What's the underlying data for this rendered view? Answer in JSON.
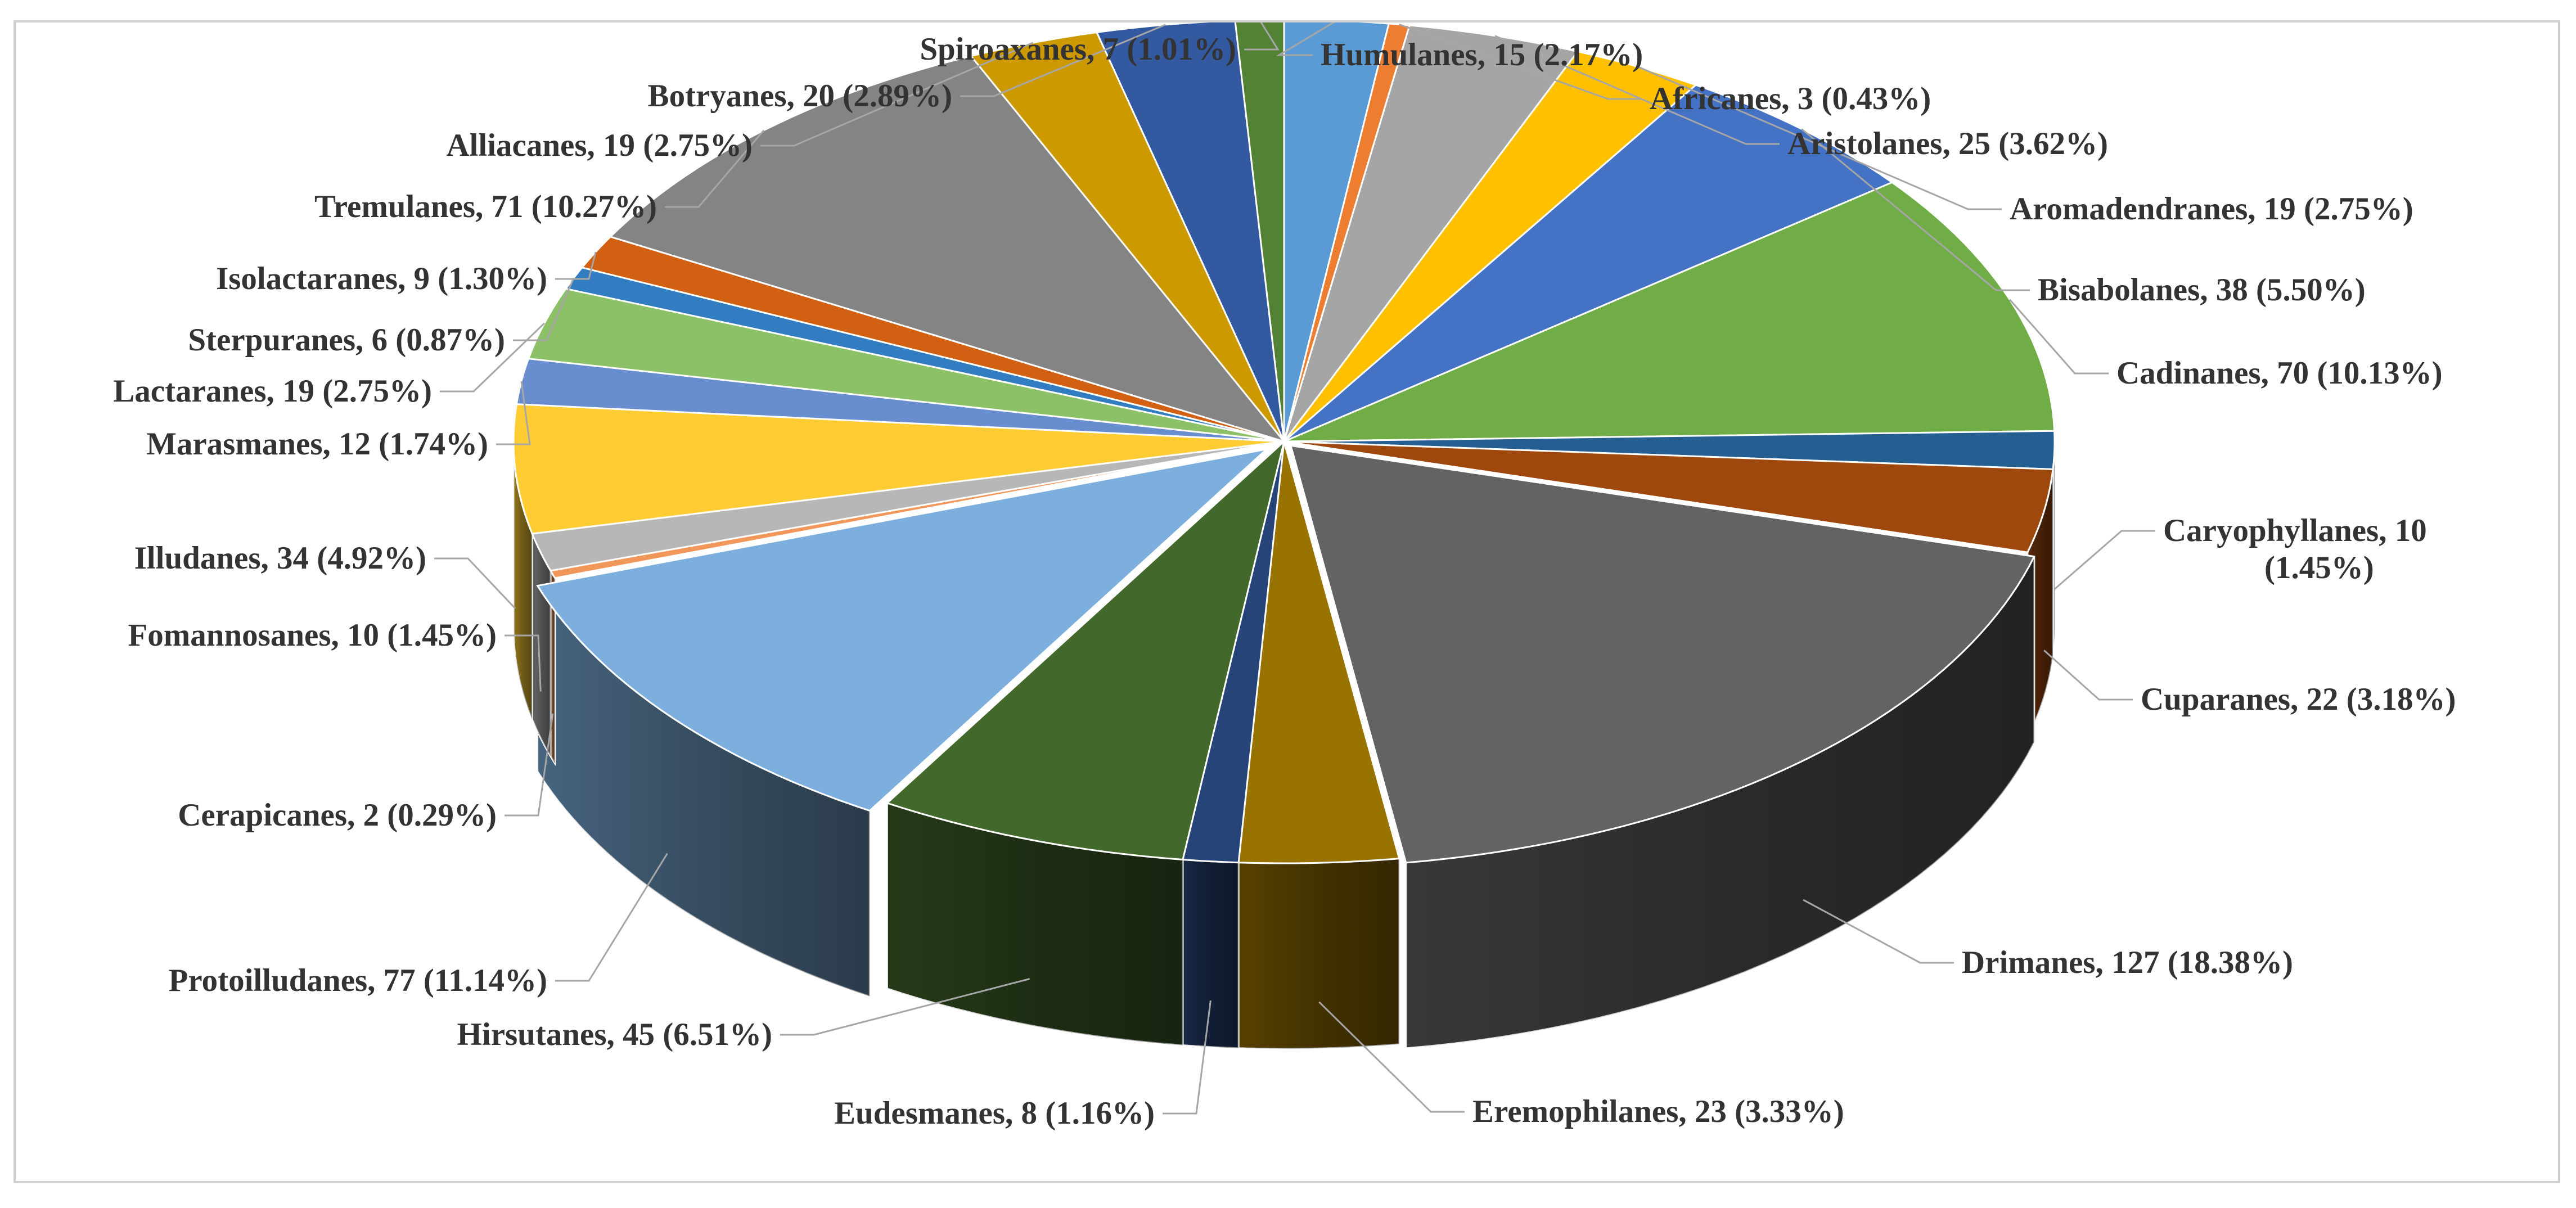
{
  "chart_data": {
    "type": "pie",
    "title": "",
    "style": "3d-exploded-perspective",
    "start_angle_deg": 0,
    "direction": "clockwise",
    "slices": [
      {
        "label": "Humulanes, 15 (2.17%)",
        "value": 15,
        "percent": 2.17,
        "color": "#5b9bd5"
      },
      {
        "label": "Africanes, 3 (0.43%)",
        "value": 3,
        "percent": 0.43,
        "color": "#ed7d31"
      },
      {
        "label": "Aristolanes, 25 (3.62%)",
        "value": 25,
        "percent": 3.62,
        "color": "#a5a5a5"
      },
      {
        "label": "Aromadendranes, 19 (2.75%)",
        "value": 19,
        "percent": 2.75,
        "color": "#ffc000"
      },
      {
        "label": "Bisabolanes, 38 (5.50%)",
        "value": 38,
        "percent": 5.5,
        "color": "#4472c4"
      },
      {
        "label": "Cadinanes, 70 (10.13%)",
        "value": 70,
        "percent": 10.13,
        "color": "#70ad47"
      },
      {
        "label": "Caryophyllanes, 10|(1.45%)",
        "value": 10,
        "percent": 1.45,
        "color": "#255e91"
      },
      {
        "label": "Cuparanes, 22 (3.18%)",
        "value": 22,
        "percent": 3.18,
        "color": "#9e480e"
      },
      {
        "label": "Drimanes, 127 (18.38%)",
        "value": 127,
        "percent": 18.38,
        "color": "#636363"
      },
      {
        "label": "Eremophilanes, 23 (3.33%)",
        "value": 23,
        "percent": 3.33,
        "color": "#997300"
      },
      {
        "label": "Eudesmanes, 8 (1.16%)",
        "value": 8,
        "percent": 1.16,
        "color": "#264478"
      },
      {
        "label": "Hirsutanes, 45 (6.51%)",
        "value": 45,
        "percent": 6.51,
        "color": "#43682b"
      },
      {
        "label": "Protoilludanes, 77 (11.14%)",
        "value": 77,
        "percent": 11.14,
        "color": "#7cafdd"
      },
      {
        "label": "Cerapicanes, 2 (0.29%)",
        "value": 2,
        "percent": 0.29,
        "color": "#f1975a"
      },
      {
        "label": "Fomannosanes, 10 (1.45%)",
        "value": 10,
        "percent": 1.45,
        "color": "#b7b7b7"
      },
      {
        "label": "Illudanes,  34 (4.92%)",
        "value": 34,
        "percent": 4.92,
        "color": "#ffcd33"
      },
      {
        "label": "Marasmanes, 12 (1.74%)",
        "value": 12,
        "percent": 1.74,
        "color": "#698ed0"
      },
      {
        "label": "Lactaranes, 19 (2.75%)",
        "value": 19,
        "percent": 2.75,
        "color": "#8cc168"
      },
      {
        "label": "Sterpuranes, 6 (0.87%)",
        "value": 6,
        "percent": 0.87,
        "color": "#327dc2"
      },
      {
        "label": "Isolactaranes, 9 (1.30%)",
        "value": 9,
        "percent": 1.3,
        "color": "#d26012"
      },
      {
        "label": "Tremulanes,  71 (10.27%)",
        "value": 71,
        "percent": 10.27,
        "color": "#848484"
      },
      {
        "label": "Alliacanes, 19 (2.75%)",
        "value": 19,
        "percent": 2.75,
        "color": "#cc9a00"
      },
      {
        "label": "Botryanes, 20 (2.89%)",
        "value": 20,
        "percent": 2.89,
        "color": "#335aa1"
      },
      {
        "label": "Spiroaxanes, 7 (1.01%)",
        "value": 7,
        "percent": 1.01,
        "color": "#548235"
      }
    ],
    "legend": "none"
  }
}
